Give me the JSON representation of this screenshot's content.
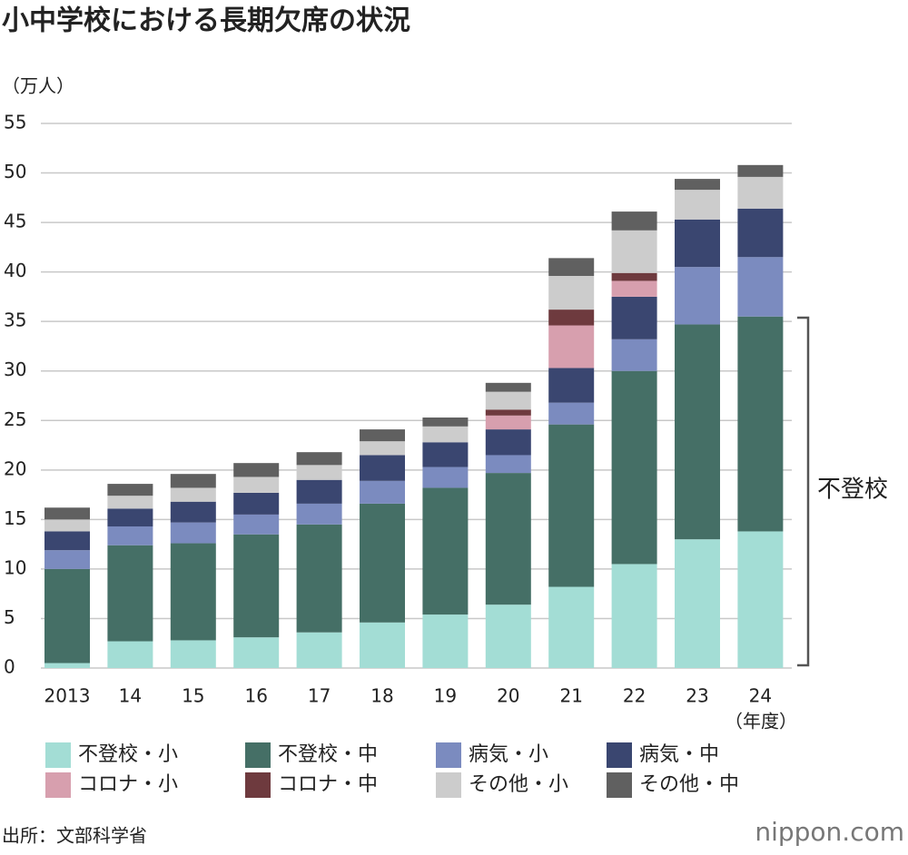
{
  "chart_data": {
    "type": "stacked-bar",
    "title": "小中学校における長期欠席の状況",
    "y_label": "（万人）",
    "x_label": "（年度）",
    "annotation": "不登校",
    "source": "出所：文部科学省",
    "logo": "nippon.com",
    "categories": [
      "2013",
      "14",
      "15",
      "16",
      "17",
      "18",
      "19",
      "20",
      "21",
      "22",
      "23",
      "24"
    ],
    "ylim": [
      0,
      55
    ],
    "yticks": [
      0,
      5,
      10,
      15,
      20,
      25,
      30,
      35,
      40,
      45,
      50,
      55
    ],
    "grid": true,
    "series": [
      {
        "name": "不登校・小",
        "color": "#a3ddd5",
        "values": [
          0.5,
          2.7,
          2.8,
          3.1,
          3.6,
          4.6,
          5.4,
          6.4,
          8.2,
          10.5,
          13.0,
          13.8
        ]
      },
      {
        "name": "不登校・中",
        "color": "#456f66",
        "values": [
          9.5,
          9.7,
          9.8,
          10.4,
          10.9,
          12.0,
          12.8,
          13.3,
          16.4,
          19.5,
          21.7,
          21.7
        ]
      },
      {
        "name": "病気・小",
        "color": "#7b8bbf",
        "values": [
          1.9,
          1.9,
          2.1,
          2.0,
          2.1,
          2.3,
          2.1,
          1.8,
          2.2,
          3.2,
          5.8,
          6.0
        ]
      },
      {
        "name": "病気・中",
        "color": "#3a4670",
        "values": [
          1.9,
          1.8,
          2.1,
          2.2,
          2.4,
          2.6,
          2.5,
          2.6,
          3.5,
          4.3,
          4.8,
          4.9
        ]
      },
      {
        "name": "コロナ・小",
        "color": "#d79fae",
        "values": [
          0,
          0,
          0,
          0,
          0,
          0,
          0,
          1.4,
          4.3,
          1.6,
          0,
          0
        ]
      },
      {
        "name": "コロナ・中",
        "color": "#6e3a3e",
        "values": [
          0,
          0,
          0,
          0,
          0,
          0,
          0,
          0.6,
          1.6,
          0.8,
          0,
          0
        ]
      },
      {
        "name": "その他・小",
        "color": "#cccccc",
        "values": [
          1.2,
          1.3,
          1.4,
          1.6,
          1.5,
          1.4,
          1.6,
          1.8,
          3.4,
          4.3,
          3.0,
          3.2
        ]
      },
      {
        "name": "その他・中",
        "color": "#606060",
        "values": [
          1.2,
          1.2,
          1.4,
          1.4,
          1.3,
          1.2,
          0.9,
          0.9,
          1.8,
          1.9,
          1.1,
          1.2
        ]
      }
    ]
  }
}
